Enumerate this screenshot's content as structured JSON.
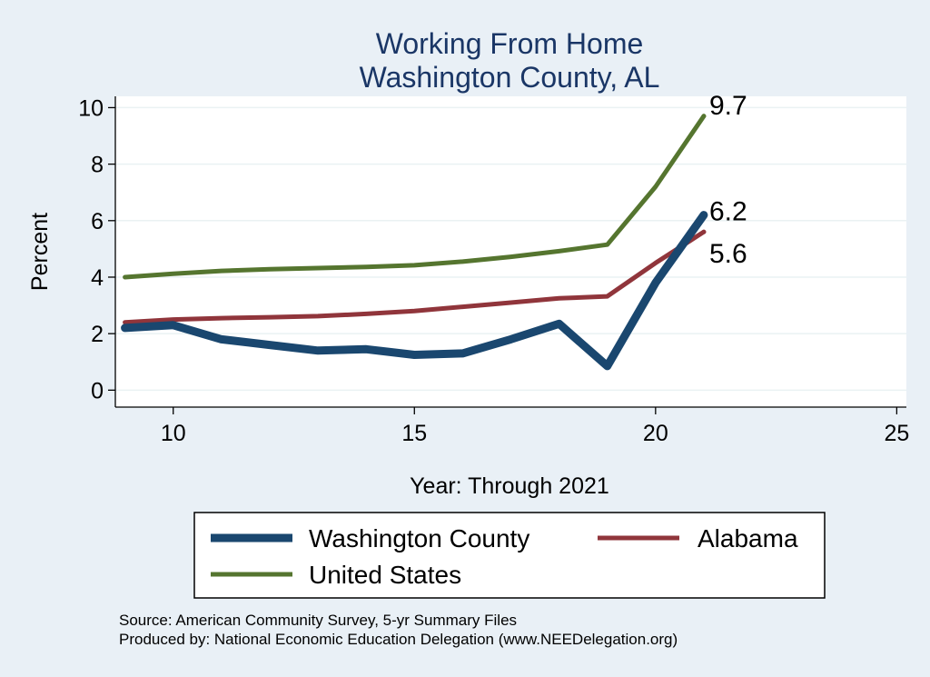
{
  "chart_data": {
    "type": "line",
    "title": [
      "Working From Home",
      "Washington County, AL"
    ],
    "xlabel": "Year: Through 2021",
    "ylabel": "Percent",
    "xlim": [
      8.8,
      25.2
    ],
    "ylim": [
      -0.6,
      10.4
    ],
    "xticks": [
      10,
      15,
      20,
      25
    ],
    "yticks": [
      0,
      2,
      4,
      6,
      8,
      10
    ],
    "grid": true,
    "legend_position": "bottom",
    "series": [
      {
        "name": "Washington County",
        "color": "#1a476f",
        "width": 9,
        "x": [
          9,
          10,
          11,
          12,
          13,
          14,
          15,
          16,
          17,
          18,
          19,
          20,
          21
        ],
        "y": [
          2.2,
          2.3,
          1.8,
          1.6,
          1.4,
          1.45,
          1.25,
          1.3,
          1.8,
          2.35,
          0.85,
          3.8,
          6.2
        ],
        "end_label": "6.2"
      },
      {
        "name": "Alabama",
        "color": "#90353b",
        "width": 5,
        "x": [
          9,
          10,
          11,
          12,
          13,
          14,
          15,
          16,
          17,
          18,
          19,
          20,
          21
        ],
        "y": [
          2.4,
          2.5,
          2.55,
          2.58,
          2.62,
          2.7,
          2.8,
          2.95,
          3.1,
          3.25,
          3.32,
          4.5,
          5.6
        ],
        "end_label": "5.6"
      },
      {
        "name": "United States",
        "color": "#55752f",
        "width": 5,
        "x": [
          9,
          10,
          11,
          12,
          13,
          14,
          15,
          16,
          17,
          18,
          19,
          20,
          21
        ],
        "y": [
          4.0,
          4.12,
          4.22,
          4.28,
          4.32,
          4.36,
          4.42,
          4.55,
          4.72,
          4.92,
          5.15,
          7.2,
          9.7
        ],
        "end_label": "9.7"
      }
    ],
    "notes": [
      "Source: American Community Survey, 5-yr Summary Files",
      "Produced by: National Economic Education Delegation (www.NEEDelegation.org)"
    ]
  }
}
